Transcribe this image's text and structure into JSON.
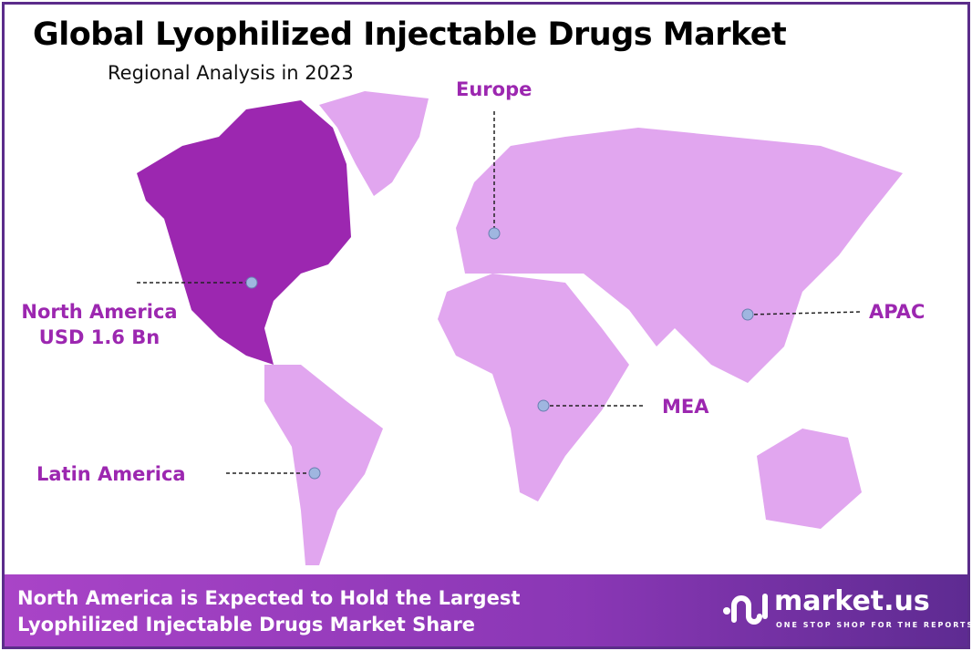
{
  "header": {
    "title": "Global Lyophilized Injectable Drugs Market",
    "subtitle": "Regional Analysis in 2023"
  },
  "colors": {
    "highlight": "#9c27b0",
    "region": "#e1a6ef",
    "label": "#9c27b0",
    "border": "#5b2d8a"
  },
  "regions": [
    {
      "name": "North America",
      "value": "USD 1.6 Bn",
      "highlighted": true
    },
    {
      "name": "Europe"
    },
    {
      "name": "APAC"
    },
    {
      "name": "MEA"
    },
    {
      "name": "Latin America"
    }
  ],
  "footer": {
    "line1": "North America is Expected to Hold the Largest",
    "line2": "Lyophilized Injectable Drugs Market Share"
  },
  "logo": {
    "name": "market.us",
    "tagline": "ONE STOP SHOP FOR THE REPORTS"
  }
}
